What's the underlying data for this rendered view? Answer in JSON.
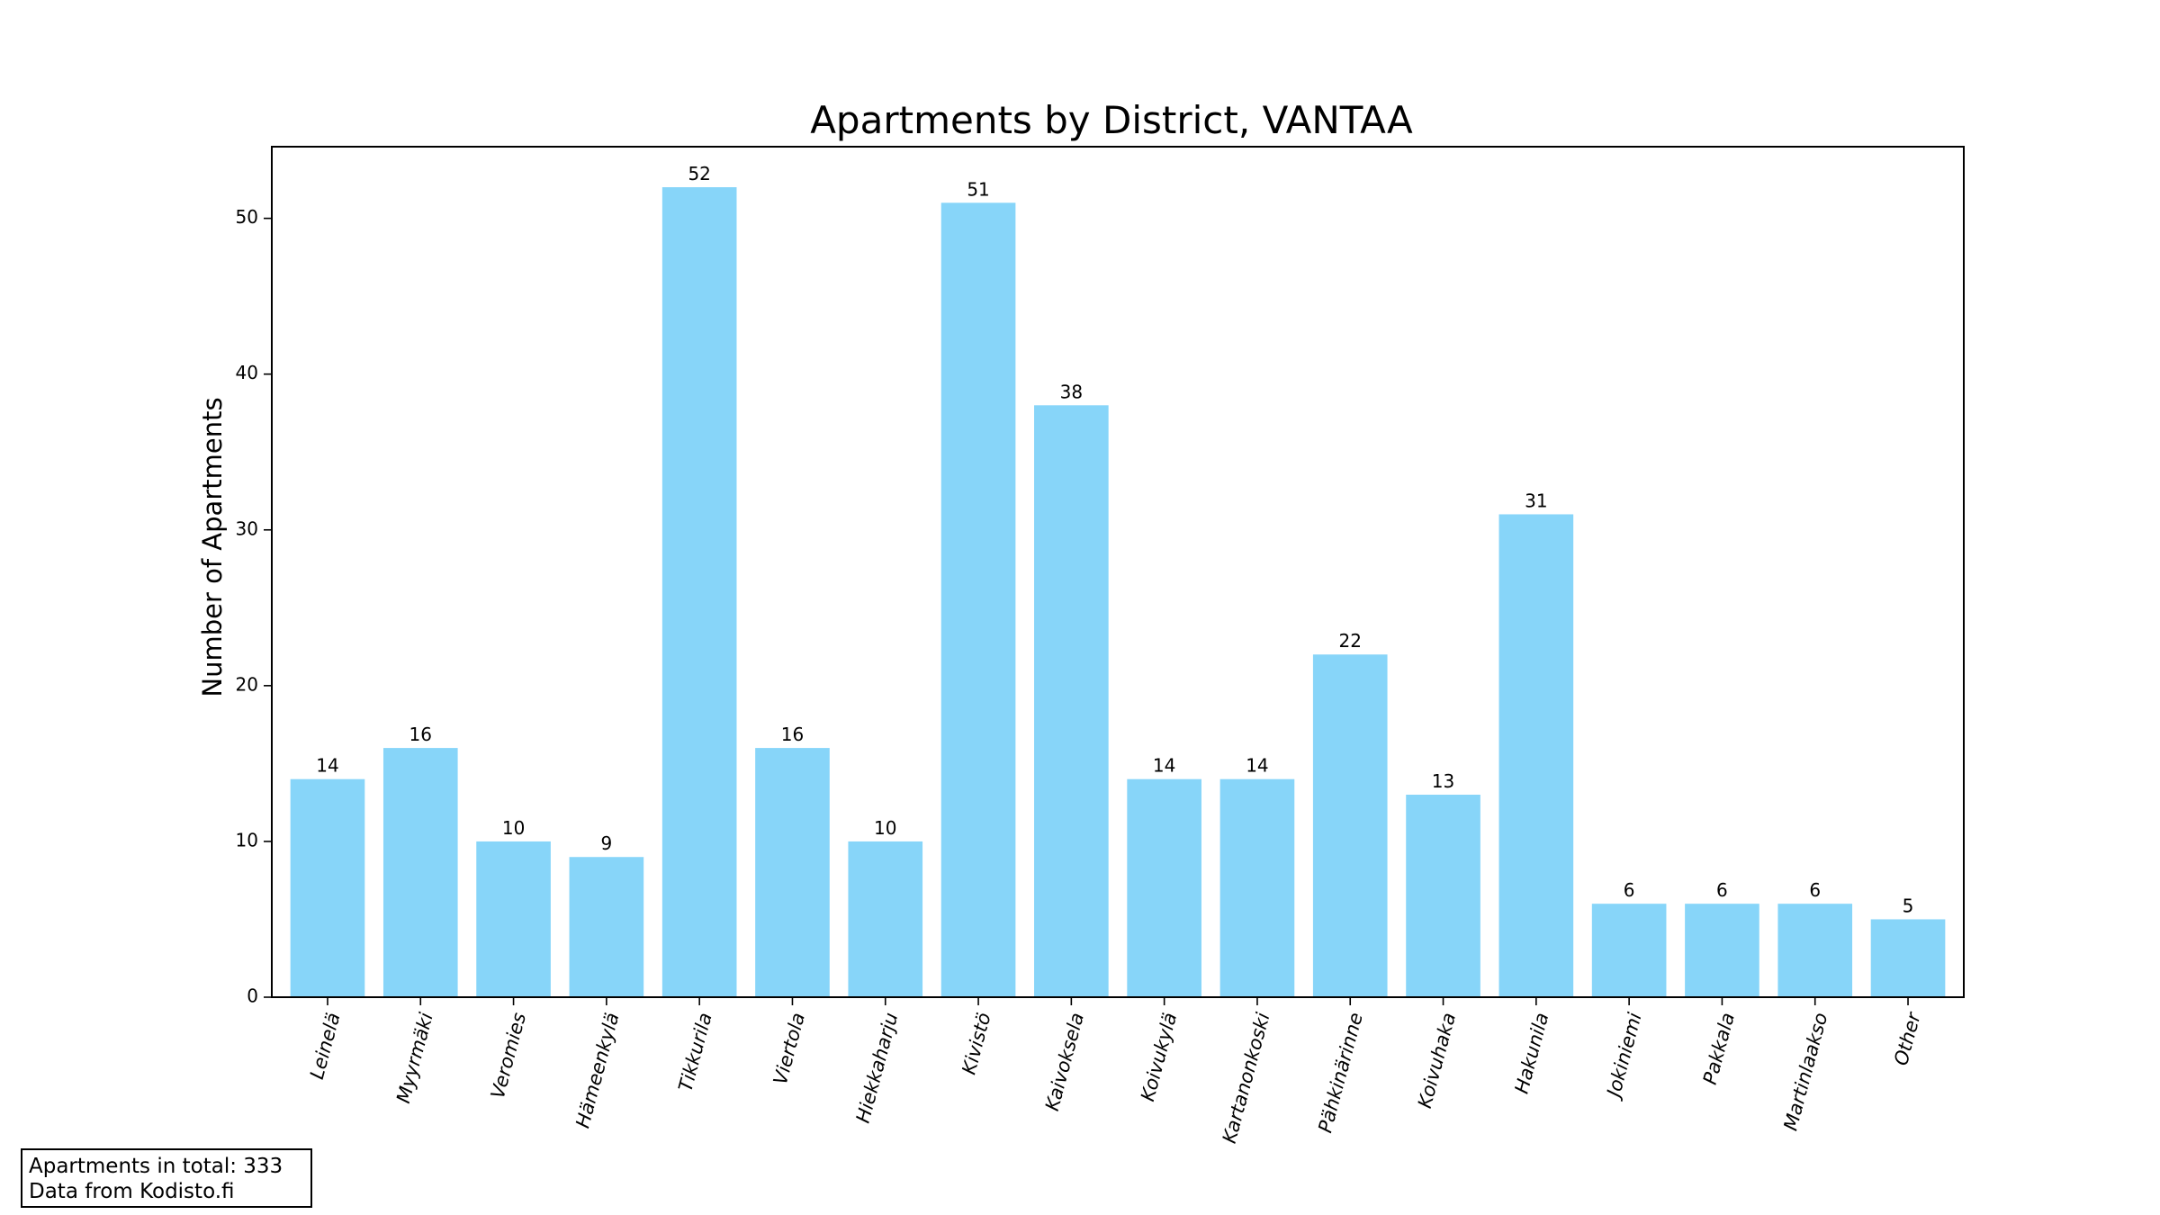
{
  "chart_data": {
    "type": "bar",
    "title": "Apartments by District, VANTAA",
    "xlabel": "",
    "ylabel": "Number of Apartments",
    "categories": [
      "Leinelä",
      "Myyrmäki",
      "Veromies",
      "Hämeenkylä",
      "Tikkurila",
      "Viertola",
      "Hiekkaharju",
      "Kivistö",
      "Kaivoksela",
      "Koivukylä",
      "Kartanonkoski",
      "Pähkinärinne",
      "Koivuhaka",
      "Hakunila",
      "Jokiniemi",
      "Pakkala",
      "Martinlaakso",
      "Other"
    ],
    "values": [
      14,
      16,
      10,
      9,
      52,
      16,
      10,
      51,
      38,
      14,
      14,
      22,
      13,
      31,
      6,
      6,
      6,
      5
    ],
    "ylim": [
      0,
      54.6
    ],
    "yticks": [
      0,
      10,
      20,
      30,
      40,
      50
    ],
    "bar_color": "#87d5f9",
    "grid": false,
    "data_labels": true
  },
  "footer": {
    "line1": "Apartments in total: 333",
    "line2": "Data from Kodisto.fi"
  }
}
